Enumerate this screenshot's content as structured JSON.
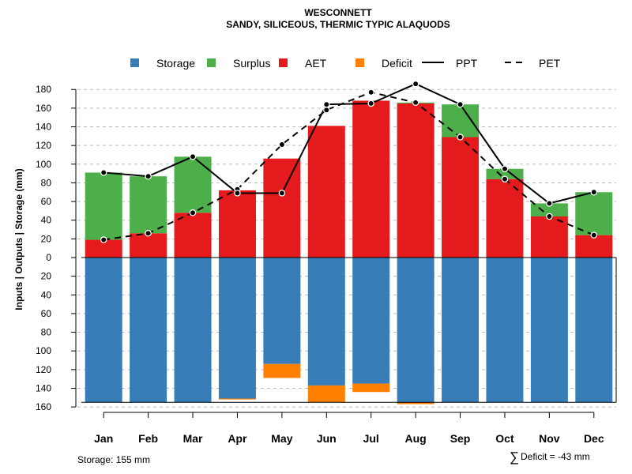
{
  "chart_data": {
    "type": "bar",
    "title": "WESCONNETT",
    "subtitle": "SANDY, SILICEOUS, THERMIC TYPIC ALAQUODS",
    "ylabel": "Inputs | Outputs | Storage    (mm)",
    "ylim": [
      -160,
      200
    ],
    "yticks": [
      180,
      160,
      140,
      120,
      100,
      80,
      60,
      40,
      20,
      0,
      -20,
      -40,
      -60,
      -80,
      -100,
      -120,
      -140,
      -160
    ],
    "ytick_labels": [
      "180",
      "160",
      "140",
      "120",
      "100",
      "80",
      "60",
      "40",
      "20",
      "0",
      "20",
      "40",
      "60",
      "80",
      "100",
      "120",
      "140",
      "160"
    ],
    "categories": [
      "Jan",
      "Feb",
      "Mar",
      "Apr",
      "May",
      "Jun",
      "Jul",
      "Aug",
      "Sep",
      "Oct",
      "Nov",
      "Dec"
    ],
    "legend": [
      {
        "name": "Storage",
        "kind": "box",
        "color": "#377eb8"
      },
      {
        "name": "Surplus",
        "kind": "box",
        "color": "#4daf4a"
      },
      {
        "name": "AET",
        "kind": "box",
        "color": "#e41a1c"
      },
      {
        "name": "Deficit",
        "kind": "box",
        "color": "#ff7f00"
      },
      {
        "name": "PPT",
        "kind": "solid",
        "color": "#000000"
      },
      {
        "name": "PET",
        "kind": "dashed",
        "color": "#000000"
      }
    ],
    "series": [
      {
        "name": "AET",
        "values": [
          19,
          26,
          48,
          72,
          106,
          141,
          168,
          165,
          129,
          84,
          44,
          24
        ]
      },
      {
        "name": "Surplus",
        "values": [
          72,
          61,
          60,
          0,
          0,
          0,
          0,
          1,
          35,
          11,
          14,
          46
        ]
      },
      {
        "name": "Storage",
        "values": [
          155,
          155,
          155,
          151,
          114,
          137,
          135,
          155,
          155,
          155,
          155,
          155
        ]
      },
      {
        "name": "Deficit",
        "values": [
          0,
          0,
          0,
          1,
          15,
          18,
          9,
          2,
          0,
          0,
          0,
          0
        ]
      },
      {
        "name": "PPT",
        "values": [
          91,
          87,
          108,
          69,
          69,
          164,
          165,
          186,
          164,
          95,
          58,
          70
        ]
      },
      {
        "name": "PET",
        "values": [
          19,
          26,
          48,
          73,
          121,
          158,
          177,
          166,
          129,
          84,
          44,
          24
        ]
      }
    ],
    "grid": true,
    "legend_position": "top"
  },
  "footer": {
    "storage": "Storage: 155 mm",
    "deficit_symbol": "∑",
    "deficit": "Deficit = -43 mm"
  }
}
